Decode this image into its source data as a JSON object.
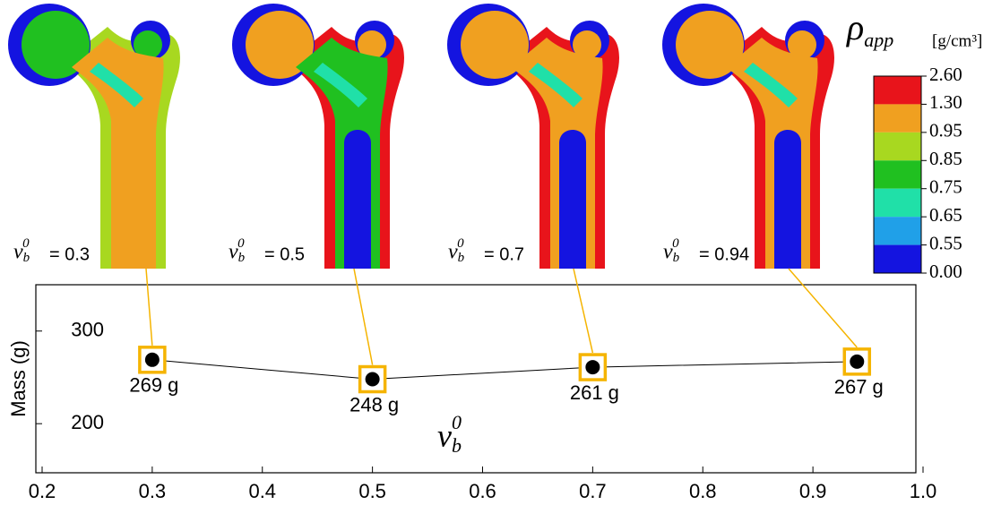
{
  "chart_data": {
    "type": "line",
    "x_label": {
      "symbol": "v",
      "sub": "b",
      "sup": "0"
    },
    "y_label": "Mass (g)",
    "x": [
      0.3,
      0.5,
      0.7,
      0.94
    ],
    "values": [
      269,
      248,
      261,
      267
    ],
    "value_labels": [
      "269 g",
      "248 g",
      "261 g",
      "267 g"
    ],
    "panel_labels": [
      "= 0.3",
      "= 0.5",
      "= 0.7",
      "= 0.94"
    ],
    "color": "#000000",
    "marker_frame_color": "#f5b400",
    "xlim": [
      0.2,
      1.0
    ],
    "xticks": [
      0.2,
      0.3,
      0.4,
      0.5,
      0.6,
      0.7,
      0.8,
      0.9,
      {
        "value": 1.0,
        "label": "1.0"
      }
    ],
    "ylim": [
      147,
      350
    ],
    "yticks": [
      200,
      300
    ],
    "colorbar": {
      "title": "ρ",
      "title_sub": "app",
      "unit": "[g/cm³]",
      "levels": [
        {
          "value": 2.6,
          "label": "2.60"
        },
        {
          "value": 1.3,
          "label": "1.30"
        },
        {
          "value": 0.95,
          "label": "0.95"
        },
        {
          "value": 0.85,
          "label": "0.85"
        },
        {
          "value": 0.75,
          "label": "0.75"
        },
        {
          "value": 0.65,
          "label": "0.65"
        },
        {
          "value": 0.55,
          "label": "0.55"
        },
        {
          "value": 0,
          "label": "0.00"
        }
      ],
      "colors": [
        "#e8141b",
        "#f0a020",
        "#a8d820",
        "#20c020",
        "#20e0a8",
        "#20a0e8",
        "#1414e0"
      ]
    }
  }
}
